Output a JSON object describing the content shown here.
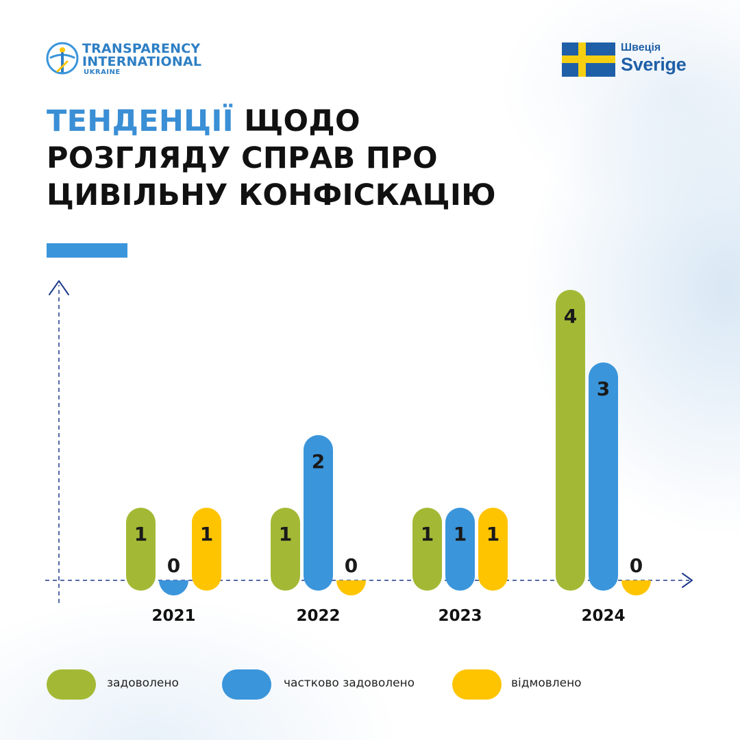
{
  "header": {
    "org_logo": {
      "line1": "TRANSPARENCY",
      "line2": "INTERNATIONAL",
      "line3": "UKRAINE",
      "icon": "ti-figure-icon"
    },
    "partner_logo": {
      "ua_name": "Швеція",
      "sv_name": "Sverige",
      "icon": "swedish-flag-icon"
    }
  },
  "title": {
    "accent": "ТЕНДЕНЦІЇ",
    "line1_rest": " ЩОДО",
    "line2": "РОЗГЛЯДУ СПРАВ ПРО",
    "line3": "ЦИВІЛЬНУ КОНФІСКАЦІЮ"
  },
  "colors": {
    "green": "#a3b935",
    "blue": "#3a95db",
    "yellow": "#ffc400",
    "axis": "#1d3a8a",
    "accent": "#3a8fd5"
  },
  "chart_data": {
    "type": "bar",
    "categories": [
      "2021",
      "2022",
      "2023",
      "2024"
    ],
    "series": [
      {
        "name": "задоволено",
        "color": "#a3b935",
        "values": [
          1,
          1,
          1,
          4
        ]
      },
      {
        "name": "частково задоволено",
        "color": "#3a95db",
        "values": [
          0,
          2,
          1,
          3
        ]
      },
      {
        "name": "відмовлено",
        "color": "#ffc400",
        "values": [
          1,
          0,
          1,
          0
        ]
      }
    ],
    "ylim": [
      0,
      4
    ],
    "legend": "bottom",
    "grid": false
  }
}
